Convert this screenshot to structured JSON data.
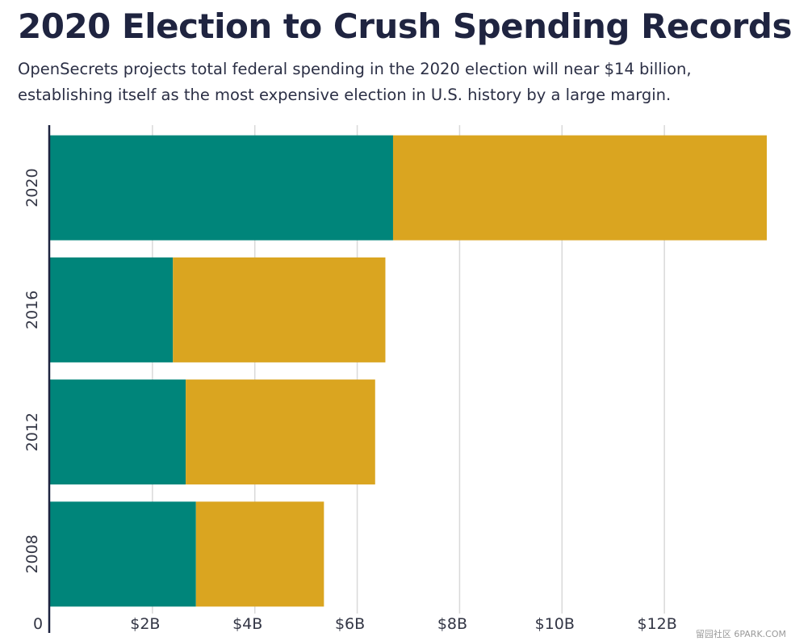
{
  "header": {
    "title": "2020 Election to Crush Spending Records",
    "subtitle": "OpenSecrets projects total federal spending in the 2020 election will near $14 billion, establishing itself as the most expensive election in U.S. history by a large margin."
  },
  "chart_data": {
    "type": "bar",
    "orientation": "horizontal",
    "stacked": true,
    "categories": [
      "2020",
      "2016",
      "2012",
      "2008"
    ],
    "series": [
      {
        "color": "#00857a",
        "values": [
          6.7,
          2.4,
          2.65,
          2.85
        ]
      },
      {
        "color": "#daa520",
        "values": [
          7.3,
          4.15,
          3.7,
          2.5
        ]
      }
    ],
    "x_ticks": [
      0,
      2,
      4,
      6,
      8,
      10,
      12
    ],
    "x_tick_labels": [
      "0",
      "$2B",
      "$4B",
      "$6B",
      "$8B",
      "$10B",
      "$12B"
    ],
    "xlim": [
      0,
      14
    ],
    "grid": true
  },
  "watermark": "留园社区 6PARK.COM"
}
